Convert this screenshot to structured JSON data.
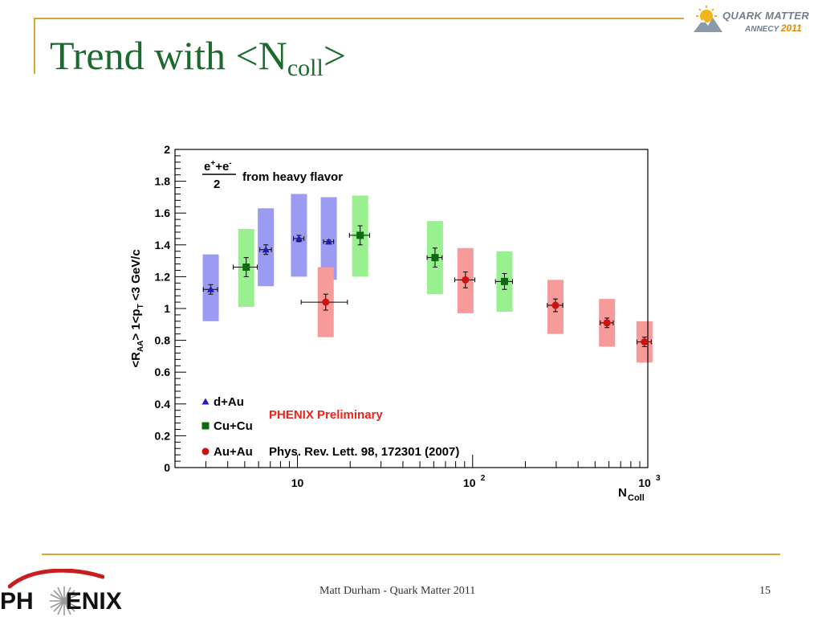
{
  "slide": {
    "title_main": "Trend with <N",
    "title_sub": "coll",
    "title_end": ">",
    "footer": "Matt Durham - Quark Matter 2011",
    "page_number": "15",
    "logo_top": {
      "line1": "QUARK MATTER",
      "line2": "ANNECY",
      "year": "2011"
    },
    "logo_bottom": {
      "part1": "PH",
      "part2": "ENIX"
    }
  },
  "chart_data": {
    "type": "scatter",
    "ylabel": "<R_AA> 1<p_T <3 GeV/c",
    "ylabel_parts": {
      "a": "<R",
      "a_sub": "AA",
      "b": "> 1<p",
      "b_sub": "T",
      "c": " <3 GeV/c"
    },
    "xlabel": "N_Coll",
    "xlabel_parts": {
      "main": "N",
      "sub": "Coll"
    },
    "x_scale": "log",
    "xlim": [
      2,
      1000
    ],
    "ylim": [
      0,
      2
    ],
    "y_ticks": [
      "0",
      "0.2",
      "0.4",
      "0.6",
      "0.8",
      "1",
      "1.2",
      "1.4",
      "1.6",
      "1.8",
      "2"
    ],
    "x_tick_labels": [
      {
        "value": 10,
        "label": "10"
      },
      {
        "value": 100,
        "label": "10",
        "exponent": "2"
      },
      {
        "value": 1000,
        "label": "10",
        "exponent": "3"
      }
    ],
    "annotation": {
      "fraction_num": "e+e-",
      "num_base1": "e",
      "num_sup1": "+",
      "num_plus": "+",
      "num_base2": "e",
      "num_sup2": "-",
      "fraction_den": "2",
      "text": "from heavy flavor"
    },
    "preliminary": "PHENIX Preliminary",
    "reference": "Phys. Rev. Lett. 98, 172301 (2007)",
    "legend_placement": "bottom-left",
    "grid": false,
    "series": [
      {
        "name": "d+Au",
        "marker": "triangle",
        "color": "#1f1fb4",
        "band_color": "#9b9bf2",
        "points": [
          {
            "x": 3.2,
            "y": 1.12,
            "sys_low": 0.92,
            "sys_high": 1.34,
            "stat": 0.03,
            "xerr_low": 0.3,
            "xerr_high": 0.3
          },
          {
            "x": 6.6,
            "y": 1.37,
            "sys_low": 1.14,
            "sys_high": 1.63,
            "stat": 0.03,
            "xerr_low": 0.5,
            "xerr_high": 0.5
          },
          {
            "x": 10.2,
            "y": 1.44,
            "sys_low": 1.2,
            "sys_high": 1.72,
            "stat": 0.02,
            "xerr_low": 0.7,
            "xerr_high": 0.7
          },
          {
            "x": 15.1,
            "y": 1.42,
            "sys_low": 1.18,
            "sys_high": 1.7,
            "stat": 0.01,
            "xerr_low": 1.0,
            "xerr_high": 1.0
          }
        ]
      },
      {
        "name": "Cu+Cu",
        "marker": "square",
        "color": "#0c6b0c",
        "band_color": "#99f08f",
        "points": [
          {
            "x": 5.1,
            "y": 1.26,
            "sys_low": 1.01,
            "sys_high": 1.5,
            "stat": 0.06,
            "xerr_low": 0.8,
            "xerr_high": 0.8
          },
          {
            "x": 22.8,
            "y": 1.46,
            "sys_low": 1.2,
            "sys_high": 1.71,
            "stat": 0.06,
            "xerr_low": 3.0,
            "xerr_high": 3.0
          },
          {
            "x": 61.0,
            "y": 1.32,
            "sys_low": 1.09,
            "sys_high": 1.55,
            "stat": 0.06,
            "xerr_low": 6.0,
            "xerr_high": 6.0
          },
          {
            "x": 152.0,
            "y": 1.17,
            "sys_low": 0.98,
            "sys_high": 1.36,
            "stat": 0.05,
            "xerr_low": 17.0,
            "xerr_high": 17.0
          }
        ]
      },
      {
        "name": "Au+Au",
        "marker": "circle",
        "color": "#cc1111",
        "band_color": "#f79a9a",
        "points": [
          {
            "x": 14.5,
            "y": 1.04,
            "sys_low": 0.82,
            "sys_high": 1.26,
            "stat": 0.05,
            "xerr_low": 4.0,
            "xerr_high": 4.8
          },
          {
            "x": 91.0,
            "y": 1.18,
            "sys_low": 0.97,
            "sys_high": 1.38,
            "stat": 0.05,
            "xerr_low": 12.0,
            "xerr_high": 12.0
          },
          {
            "x": 297.0,
            "y": 1.02,
            "sys_low": 0.84,
            "sys_high": 1.18,
            "stat": 0.04,
            "xerr_low": 30.0,
            "xerr_high": 30.0
          },
          {
            "x": 585.0,
            "y": 0.91,
            "sys_low": 0.76,
            "sys_high": 1.06,
            "stat": 0.03,
            "xerr_low": 50.0,
            "xerr_high": 50.0
          },
          {
            "x": 957.0,
            "y": 0.79,
            "sys_low": 0.66,
            "sys_high": 0.92,
            "stat": 0.03,
            "xerr_low": 90.0,
            "xerr_high": 90.0
          }
        ]
      }
    ]
  }
}
